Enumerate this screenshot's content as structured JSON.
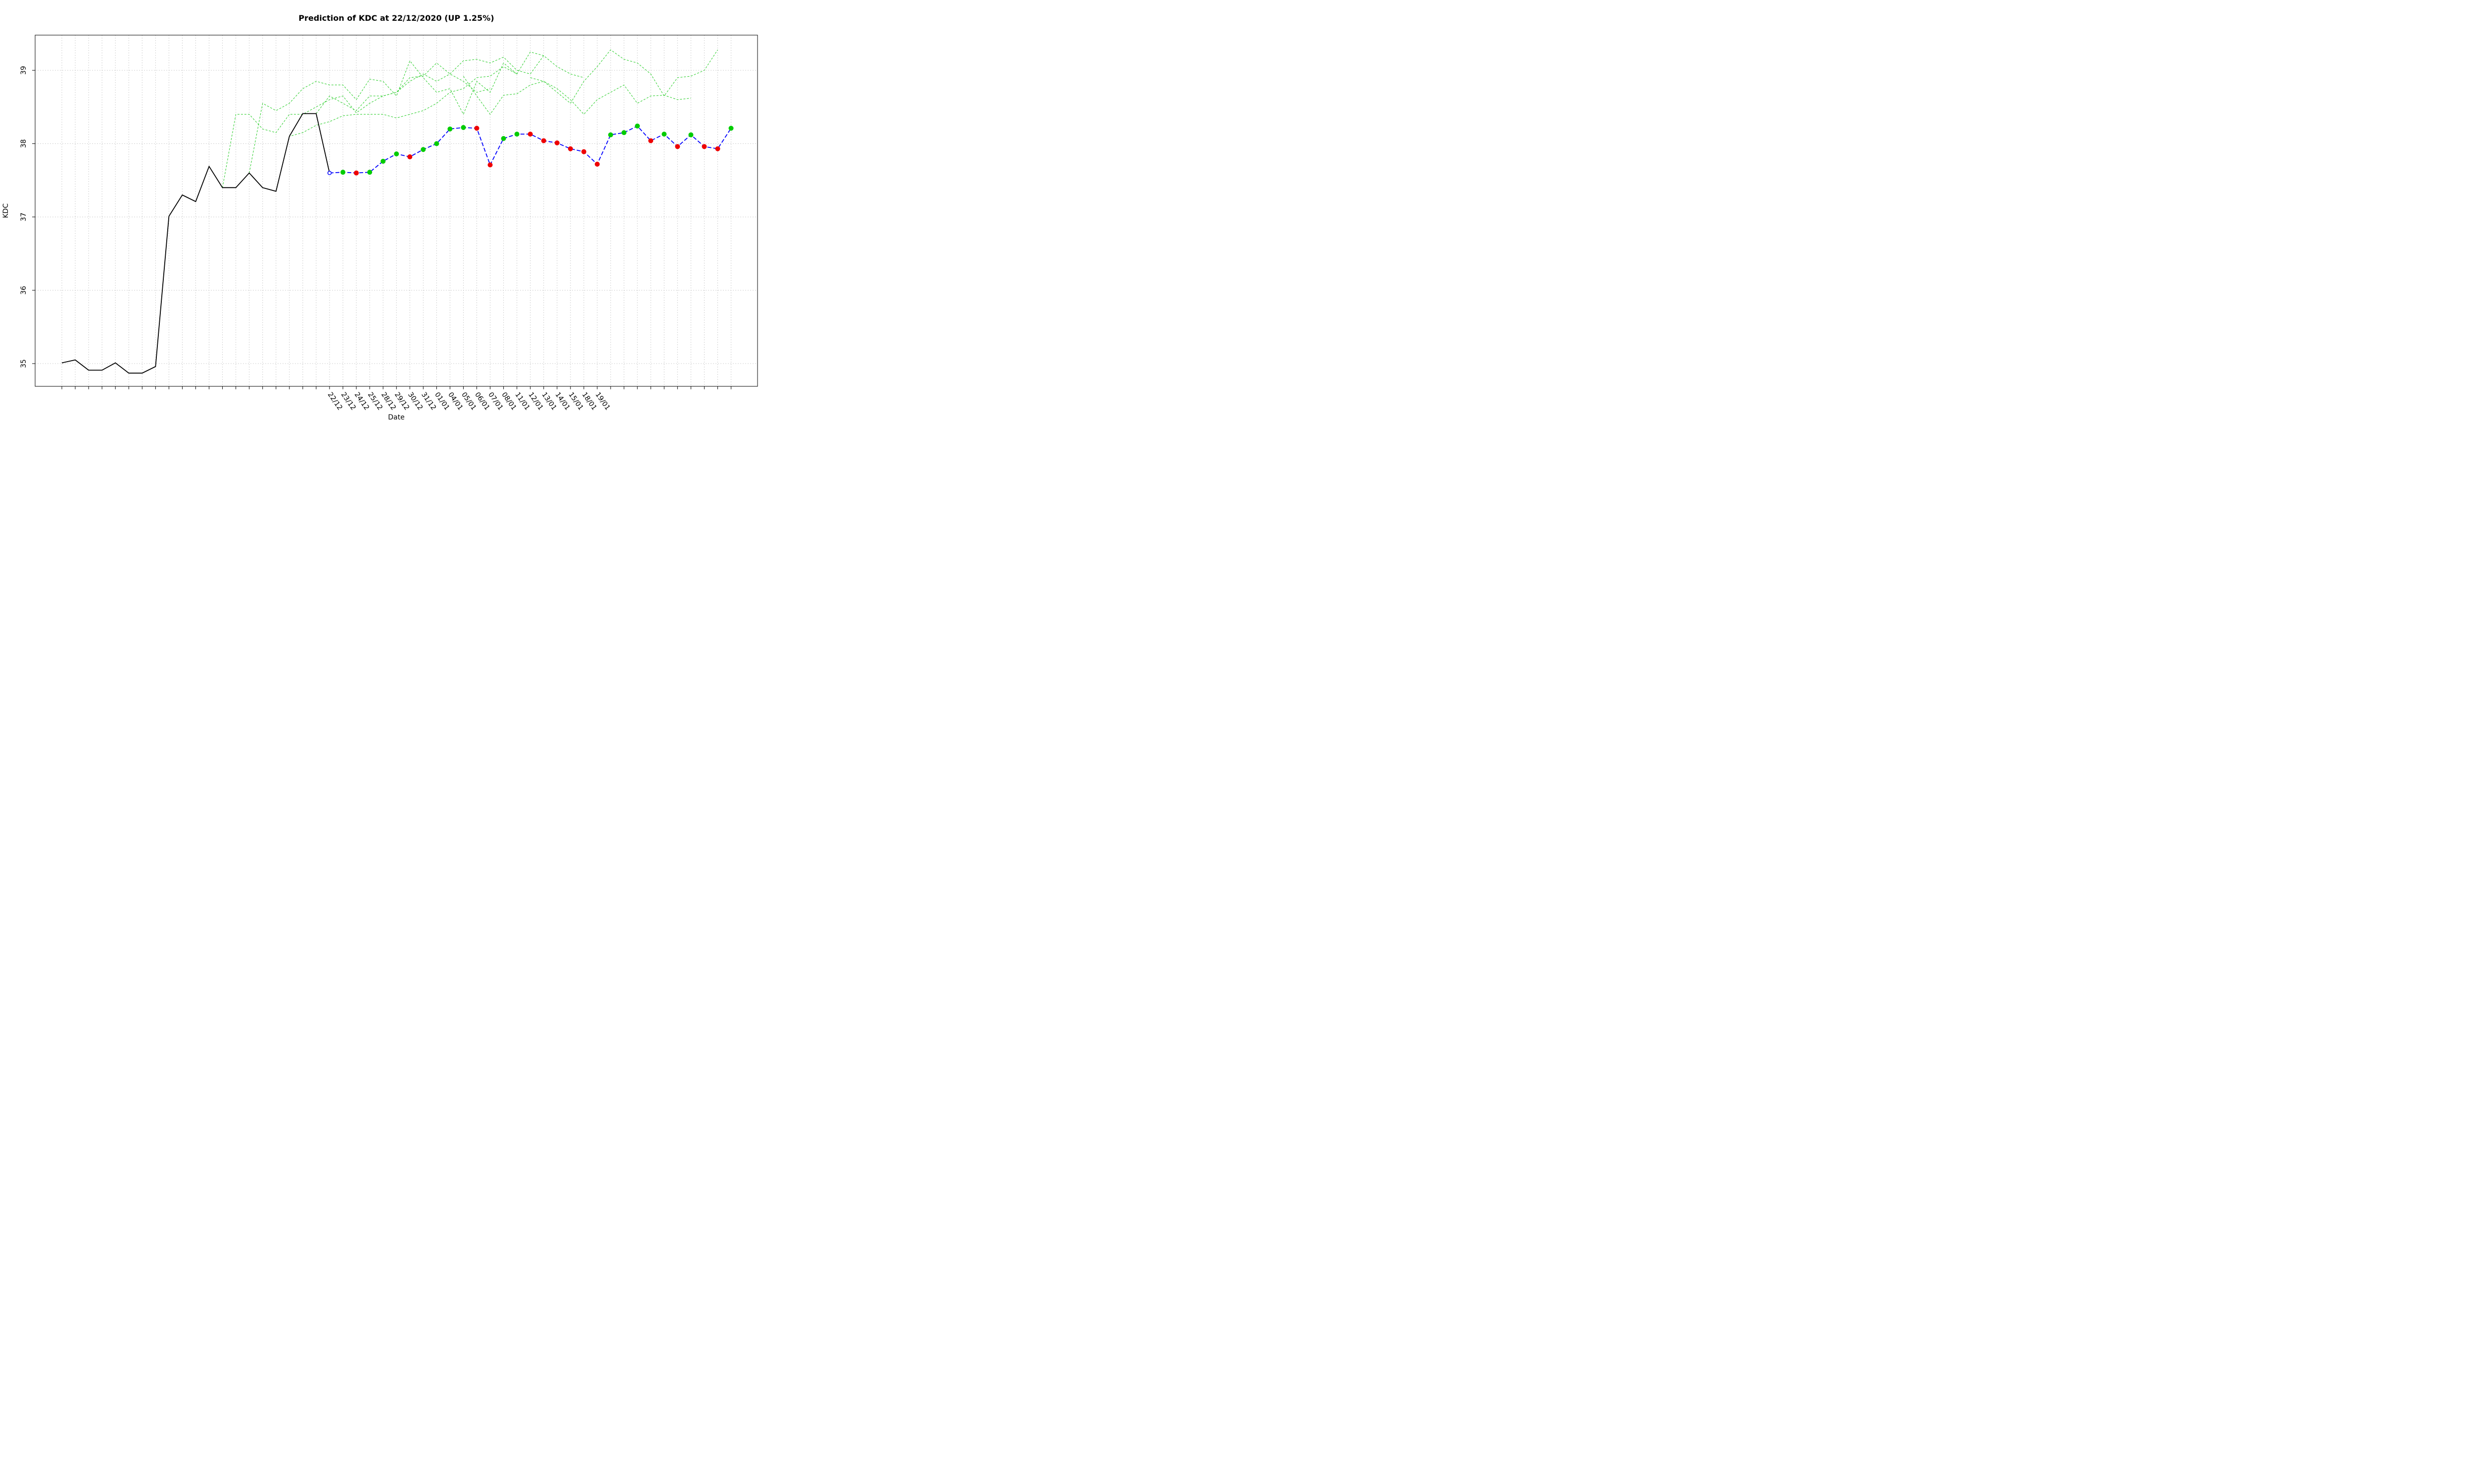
{
  "chart_data": {
    "type": "line",
    "title": "Prediction of KDC at 22/12/2020 (UP 1.25%)",
    "x_label": "Date",
    "y_label": "KDC",
    "categories": [
      null,
      null,
      null,
      null,
      null,
      null,
      null,
      null,
      null,
      null,
      null,
      null,
      null,
      null,
      null,
      null,
      null,
      null,
      null,
      null,
      "22/12",
      "23/12",
      "24/12",
      "25/12",
      "28/12",
      "29/12",
      "30/12",
      "31/12",
      "01/01",
      "04/01",
      "05/01",
      "06/01",
      "07/01",
      "08/01",
      "11/01",
      "12/01",
      "13/01",
      "14/01",
      "15/01",
      "18/01",
      "19/01",
      null,
      null,
      null,
      null,
      null,
      null,
      null,
      null,
      null,
      null
    ],
    "ylim": [
      34.69,
      39.48
    ],
    "yticks": [
      35,
      36,
      37,
      38,
      39
    ],
    "grid": true,
    "series": [
      {
        "color": "#22cc22",
        "dash": true,
        "values": [
          null,
          null,
          null,
          null,
          null,
          null,
          null,
          null,
          null,
          null,
          null,
          null,
          37.4,
          38.4,
          38.4,
          38.2,
          38.15,
          38.4,
          38.4,
          38.5,
          38.6,
          38.65,
          38.42,
          38.55,
          38.65,
          38.7,
          38.9,
          38.92,
          39.1,
          38.95,
          38.85,
          38.7,
          38.75,
          null,
          null,
          null,
          null,
          null,
          null,
          null,
          null,
          null,
          null,
          null,
          null,
          null,
          null,
          null,
          null,
          null,
          null
        ]
      },
      {
        "color": "#22cc22",
        "dash": true,
        "values": [
          null,
          null,
          null,
          null,
          null,
          null,
          null,
          null,
          null,
          null,
          null,
          null,
          null,
          null,
          37.6,
          38.55,
          38.45,
          38.55,
          38.75,
          38.85,
          38.8,
          38.8,
          38.6,
          38.88,
          38.85,
          38.65,
          39.13,
          38.9,
          38.7,
          38.75,
          38.4,
          38.85,
          38.7,
          39.1,
          38.95,
          null,
          null,
          null,
          null,
          null,
          null,
          null,
          null,
          null,
          null,
          null,
          null,
          null,
          null,
          null,
          null
        ]
      },
      {
        "color": "#22cc22",
        "dash": true,
        "values": [
          null,
          null,
          null,
          null,
          null,
          null,
          null,
          null,
          null,
          null,
          null,
          null,
          null,
          null,
          null,
          null,
          37.35,
          38.1,
          38.15,
          38.25,
          38.3,
          38.38,
          38.4,
          38.4,
          38.4,
          38.35,
          38.4,
          38.45,
          38.55,
          38.7,
          38.75,
          38.9,
          38.92,
          39.05,
          38.95,
          39.25,
          39.2,
          null,
          null,
          null,
          null,
          null,
          null,
          null,
          null,
          null,
          null,
          null,
          null,
          null,
          null
        ]
      },
      {
        "color": "#22cc22",
        "dash": true,
        "values": [
          null,
          null,
          null,
          null,
          null,
          null,
          null,
          null,
          null,
          null,
          null,
          null,
          null,
          null,
          null,
          null,
          null,
          null,
          null,
          38.41,
          38.65,
          38.55,
          38.45,
          38.65,
          38.65,
          38.7,
          38.85,
          38.95,
          38.85,
          38.95,
          39.13,
          39.15,
          39.1,
          39.18,
          39.0,
          38.95,
          39.2,
          39.05,
          38.95,
          38.9,
          null,
          null,
          null,
          null,
          null,
          null,
          null,
          null,
          null,
          null,
          null
        ]
      },
      {
        "color": "#22cc22",
        "dash": true,
        "values": [
          null,
          null,
          null,
          null,
          null,
          null,
          null,
          null,
          null,
          null,
          null,
          null,
          null,
          null,
          null,
          null,
          null,
          null,
          null,
          null,
          null,
          null,
          null,
          null,
          null,
          null,
          null,
          null,
          null,
          null,
          null,
          null,
          null,
          null,
          null,
          38.9,
          38.85,
          38.7,
          38.55,
          38.85,
          39.05,
          39.28,
          39.15,
          39.1,
          38.95,
          38.65,
          38.9,
          38.92,
          39.0,
          39.28,
          null
        ]
      },
      {
        "color": "#22cc22",
        "dash": true,
        "values": [
          null,
          null,
          null,
          null,
          null,
          null,
          null,
          null,
          null,
          null,
          null,
          null,
          null,
          null,
          null,
          null,
          null,
          null,
          null,
          null,
          null,
          null,
          null,
          null,
          null,
          null,
          null,
          null,
          null,
          null,
          38.92,
          38.65,
          38.4,
          38.66,
          38.68,
          38.8,
          38.85,
          38.75,
          38.6,
          38.4,
          38.6,
          38.7,
          38.8,
          38.55,
          38.65,
          38.66,
          38.6,
          38.62,
          null,
          null,
          null
        ]
      },
      {
        "color": "#000000",
        "dash": false,
        "values": [
          35.01,
          35.05,
          34.91,
          34.91,
          35.01,
          34.87,
          34.87,
          34.96,
          37.01,
          37.3,
          37.21,
          37.69,
          37.4,
          37.4,
          37.6,
          37.4,
          37.35,
          38.1,
          38.41,
          38.41,
          37.6,
          null,
          null,
          null,
          null,
          null,
          null,
          null,
          null,
          null,
          null,
          null,
          null,
          null,
          null,
          null,
          null,
          null,
          null,
          null,
          null,
          null,
          null,
          null,
          null,
          null,
          null,
          null,
          null,
          null,
          null
        ]
      },
      {
        "color": "#0000ff",
        "dash": true,
        "values": [
          null,
          null,
          null,
          null,
          null,
          null,
          null,
          null,
          null,
          null,
          null,
          null,
          null,
          null,
          null,
          null,
          null,
          null,
          null,
          null,
          37.6,
          37.61,
          37.6,
          37.61,
          37.76,
          37.86,
          37.82,
          37.92,
          38.0,
          38.2,
          38.22,
          38.21,
          37.71,
          38.07,
          38.13,
          38.13,
          38.04,
          38.01,
          37.93,
          37.89,
          37.72,
          38.12,
          38.15,
          38.24,
          38.04,
          38.13,
          37.96,
          38.12,
          37.96,
          37.93,
          38.21
        ],
        "marker_colors": [
          null,
          null,
          null,
          null,
          null,
          null,
          null,
          null,
          null,
          null,
          null,
          null,
          null,
          null,
          null,
          null,
          null,
          null,
          null,
          null,
          "#0000ff",
          "#00cc00",
          "#ee0000",
          "#00cc00",
          "#00cc00",
          "#00cc00",
          "#ee0000",
          "#00cc00",
          "#00cc00",
          "#00cc00",
          "#00cc00",
          "#ee0000",
          "#ee0000",
          "#00cc00",
          "#00cc00",
          "#ee0000",
          "#ee0000",
          "#ee0000",
          "#ee0000",
          "#ee0000",
          "#ee0000",
          "#00cc00",
          "#00cc00",
          "#00cc00",
          "#ee0000",
          "#00cc00",
          "#ee0000",
          "#00cc00",
          "#ee0000",
          "#ee0000",
          "#00cc00"
        ]
      }
    ]
  }
}
